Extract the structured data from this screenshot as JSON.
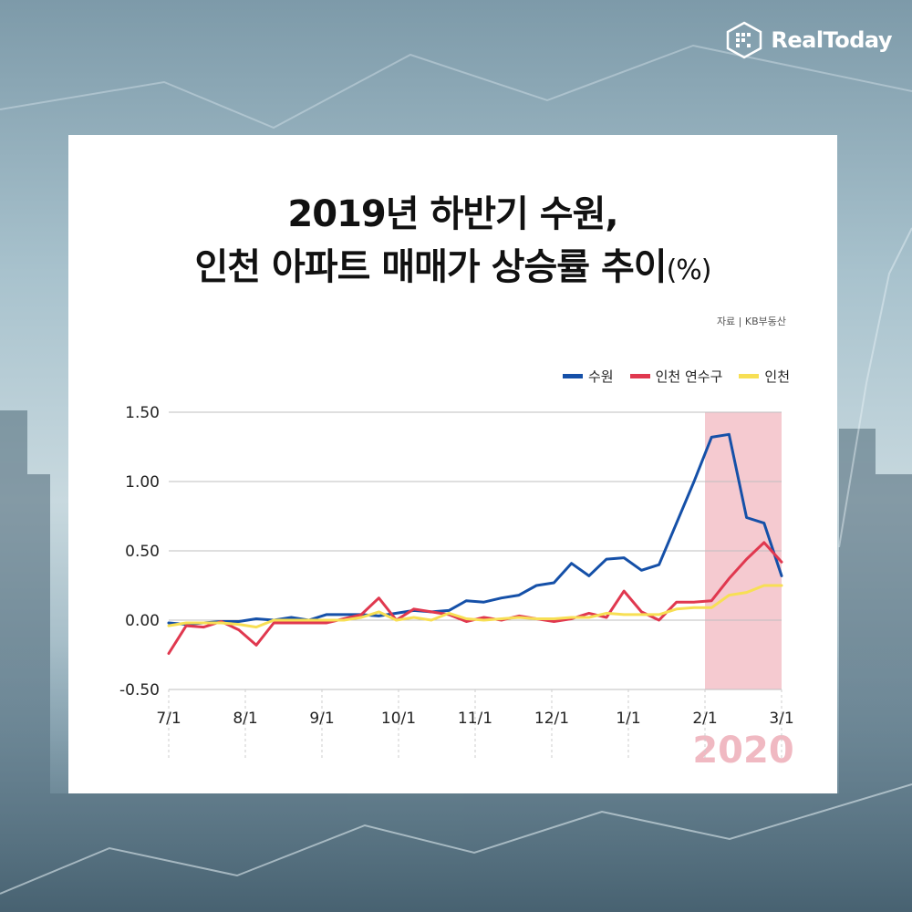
{
  "brand": {
    "name": "RealToday"
  },
  "title": {
    "line1": "2019년 하반기 수원,",
    "line2_main": "인천 아파트 매매가 상승률 추이",
    "line2_unit": "(%)"
  },
  "source": "자료 | KB부동산",
  "colors": {
    "suwon": "#1550a8",
    "yeonsu": "#e0384f",
    "incheon": "#f7df54",
    "highlight": "#f3c1c8",
    "grid": "#bfbfbf",
    "year_label": "#f0b9c2"
  },
  "chart_data": {
    "type": "line",
    "title": "2019년 하반기 수원, 인천 아파트 매매가 상승률 추이(%)",
    "ylim": [
      -0.5,
      1.5
    ],
    "y_ticks": [
      "1.50",
      "1.00",
      "0.50",
      "0.00",
      "-0.50"
    ],
    "y_tick_values": [
      1.5,
      1.0,
      0.5,
      0.0,
      -0.5
    ],
    "x_ticks": [
      "7/1",
      "8/1",
      "9/1",
      "10/1",
      "11/1",
      "12/1",
      "1/1",
      "2/1",
      "3/1"
    ],
    "highlight": {
      "from": "2/1",
      "to": "3/1",
      "label": "2020"
    },
    "legend_position": "top-right",
    "grid": "horizontal",
    "series": [
      {
        "name": "수원",
        "color_key": "suwon",
        "values": [
          -0.02,
          -0.03,
          -0.02,
          -0.01,
          -0.01,
          0.01,
          0.0,
          0.02,
          0.0,
          0.04,
          0.04,
          0.04,
          0.03,
          0.05,
          0.07,
          0.06,
          0.07,
          0.14,
          0.13,
          0.16,
          0.18,
          0.25,
          0.27,
          0.41,
          0.32,
          0.44,
          0.45,
          0.36,
          0.4,
          0.7,
          1.0,
          1.32,
          1.34,
          0.74,
          0.7,
          0.32
        ]
      },
      {
        "name": "인천 연수구",
        "color_key": "yeonsu",
        "values": [
          -0.24,
          -0.04,
          -0.05,
          -0.01,
          -0.07,
          -0.18,
          -0.02,
          -0.02,
          -0.02,
          -0.02,
          0.01,
          0.04,
          0.16,
          0.0,
          0.08,
          0.06,
          0.04,
          -0.01,
          0.02,
          0.0,
          0.03,
          0.01,
          -0.01,
          0.01,
          0.05,
          0.02,
          0.21,
          0.06,
          0.0,
          0.13,
          0.13,
          0.14,
          0.3,
          0.44,
          0.56,
          0.42
        ]
      },
      {
        "name": "인천",
        "color_key": "incheon",
        "values": [
          -0.04,
          -0.02,
          -0.02,
          -0.02,
          -0.03,
          -0.05,
          0.0,
          0.0,
          0.0,
          0.0,
          0.0,
          0.02,
          0.06,
          0.0,
          0.02,
          0.0,
          0.05,
          0.01,
          0.0,
          0.01,
          0.02,
          0.01,
          0.01,
          0.02,
          0.02,
          0.05,
          0.04,
          0.04,
          0.04,
          0.08,
          0.09,
          0.09,
          0.18,
          0.2,
          0.25,
          0.25
        ]
      }
    ]
  }
}
